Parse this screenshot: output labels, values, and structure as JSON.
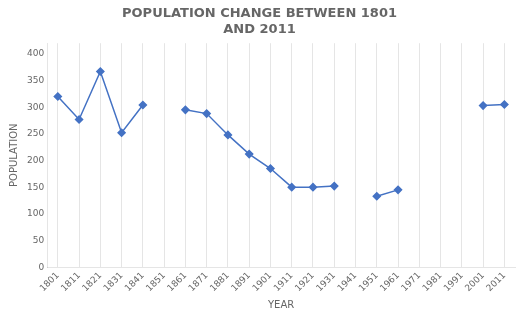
{
  "chart_data": {
    "type": "line",
    "title": "POPULATION CHANGE BETWEEN 1801\nAND 2011",
    "x_label": "YEAR",
    "y_label": "POPULATION",
    "x": [
      1801,
      1811,
      1821,
      1831,
      1841,
      1851,
      1861,
      1871,
      1881,
      1891,
      1901,
      1911,
      1921,
      1931,
      1941,
      1951,
      1961,
      1971,
      1981,
      1991,
      2001,
      2011
    ],
    "values": [
      320,
      277,
      367,
      252,
      304,
      null,
      295,
      288,
      248,
      212,
      185,
      150,
      150,
      152,
      null,
      133,
      145,
      null,
      null,
      null,
      303,
      305
    ],
    "color": "#4472C4",
    "marker": "diamond",
    "xlim": [
      1796,
      2016
    ],
    "xticks": [
      1801,
      1811,
      1821,
      1831,
      1841,
      1851,
      1861,
      1871,
      1881,
      1891,
      1901,
      1911,
      1921,
      1931,
      1941,
      1951,
      1961,
      1971,
      1981,
      1991,
      2001,
      2011
    ],
    "ylim": [
      0,
      420
    ],
    "yticks": [
      0,
      50,
      100,
      150,
      200,
      250,
      300,
      350,
      400
    ],
    "grid": "x"
  }
}
